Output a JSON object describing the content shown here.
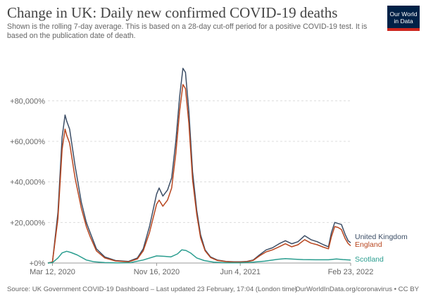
{
  "title": "Change in UK: Daily new confirmed COVID-19 deaths",
  "subtitle": "Shown is the rolling 7-day average. This is based on a 28-day cut-off period for a positive COVID-19 test. It is based on the publication date of death.",
  "logo": {
    "line1": "Our World",
    "line2": "in Data"
  },
  "footer": {
    "source": "Source: UK Government COVID-19 Dashboard – Last updated 23 February, 17:04 (London time)",
    "credit": "OurWorldInData.org/coronavirus • CC BY"
  },
  "chart_data": {
    "type": "line",
    "title": "Change in UK: Daily new confirmed COVID-19 deaths",
    "ylim": [
      0,
      95000
    ],
    "xlim": [
      "2020-03-01",
      "2022-02-23"
    ],
    "y_ticks": [
      {
        "value": 0,
        "label": "+0%"
      },
      {
        "value": 20000,
        "label": "+20,000%"
      },
      {
        "value": 40000,
        "label": "+40,000%"
      },
      {
        "value": 60000,
        "label": "+60,000%"
      },
      {
        "value": 80000,
        "label": "+80,000%"
      }
    ],
    "x_ticks": [
      {
        "date": "2020-03-12",
        "label": "Mar 12, 2020"
      },
      {
        "date": "2020-11-16",
        "label": "Nov 16, 2020"
      },
      {
        "date": "2021-06-04",
        "label": "Jun 4, 2021"
      },
      {
        "date": "2022-02-23",
        "label": "Feb 23, 2022"
      }
    ],
    "grid": "horizontal dashed",
    "legend": "right, at line ends",
    "series": [
      {
        "name": "United Kingdom",
        "color": "#3c4e66",
        "points": [
          [
            "2020-03-01",
            0
          ],
          [
            "2020-03-12",
            500
          ],
          [
            "2020-03-25",
            25000
          ],
          [
            "2020-04-04",
            62000
          ],
          [
            "2020-04-11",
            73000
          ],
          [
            "2020-04-15",
            70000
          ],
          [
            "2020-04-22",
            66000
          ],
          [
            "2020-05-05",
            48000
          ],
          [
            "2020-05-20",
            30000
          ],
          [
            "2020-06-01",
            20000
          ],
          [
            "2020-06-10",
            15000
          ],
          [
            "2020-06-25",
            7000
          ],
          [
            "2020-07-15",
            3000
          ],
          [
            "2020-08-10",
            1200
          ],
          [
            "2020-09-10",
            800
          ],
          [
            "2020-10-01",
            2500
          ],
          [
            "2020-10-15",
            7000
          ],
          [
            "2020-10-30",
            18000
          ],
          [
            "2020-11-16",
            34000
          ],
          [
            "2020-11-22",
            37000
          ],
          [
            "2020-12-01",
            33000
          ],
          [
            "2020-12-12",
            36000
          ],
          [
            "2020-12-22",
            42000
          ],
          [
            "2021-01-01",
            60000
          ],
          [
            "2021-01-10",
            82000
          ],
          [
            "2021-01-18",
            96000
          ],
          [
            "2021-01-24",
            94000
          ],
          [
            "2021-02-01",
            75000
          ],
          [
            "2021-02-10",
            45000
          ],
          [
            "2021-02-20",
            26000
          ],
          [
            "2021-03-01",
            14000
          ],
          [
            "2021-03-12",
            6500
          ],
          [
            "2021-03-25",
            3000
          ],
          [
            "2021-04-10",
            1500
          ],
          [
            "2021-05-01",
            800
          ],
          [
            "2021-05-20",
            600
          ],
          [
            "2021-06-04",
            600
          ],
          [
            "2021-06-20",
            800
          ],
          [
            "2021-07-05",
            1500
          ],
          [
            "2021-07-20",
            4000
          ],
          [
            "2021-08-05",
            6500
          ],
          [
            "2021-08-20",
            7500
          ],
          [
            "2021-09-05",
            9500
          ],
          [
            "2021-09-20",
            11000
          ],
          [
            "2021-10-05",
            9500
          ],
          [
            "2021-10-20",
            10500
          ],
          [
            "2021-11-05",
            13500
          ],
          [
            "2021-11-20",
            11500
          ],
          [
            "2021-12-05",
            10500
          ],
          [
            "2021-12-20",
            9000
          ],
          [
            "2022-01-01",
            8000
          ],
          [
            "2022-01-08",
            15000
          ],
          [
            "2022-01-16",
            20000
          ],
          [
            "2022-01-24",
            19500
          ],
          [
            "2022-02-01",
            19000
          ],
          [
            "2022-02-10",
            14000
          ],
          [
            "2022-02-17",
            11000
          ],
          [
            "2022-02-23",
            10000
          ]
        ]
      },
      {
        "name": "England",
        "color": "#b8461f",
        "points": [
          [
            "2020-03-01",
            0
          ],
          [
            "2020-03-12",
            500
          ],
          [
            "2020-03-25",
            22000
          ],
          [
            "2020-04-04",
            56000
          ],
          [
            "2020-04-11",
            66000
          ],
          [
            "2020-04-15",
            63000
          ],
          [
            "2020-04-22",
            59000
          ],
          [
            "2020-05-05",
            42000
          ],
          [
            "2020-05-20",
            27000
          ],
          [
            "2020-06-01",
            18000
          ],
          [
            "2020-06-10",
            13000
          ],
          [
            "2020-06-25",
            6000
          ],
          [
            "2020-07-15",
            2500
          ],
          [
            "2020-08-10",
            1000
          ],
          [
            "2020-09-10",
            600
          ],
          [
            "2020-10-01",
            2000
          ],
          [
            "2020-10-15",
            6000
          ],
          [
            "2020-10-30",
            15000
          ],
          [
            "2020-11-16",
            29000
          ],
          [
            "2020-11-22",
            31000
          ],
          [
            "2020-12-01",
            28000
          ],
          [
            "2020-12-12",
            31000
          ],
          [
            "2020-12-22",
            37000
          ],
          [
            "2021-01-01",
            54000
          ],
          [
            "2021-01-10",
            75000
          ],
          [
            "2021-01-18",
            88000
          ],
          [
            "2021-01-24",
            86000
          ],
          [
            "2021-02-01",
            69000
          ],
          [
            "2021-02-10",
            41000
          ],
          [
            "2021-02-20",
            24000
          ],
          [
            "2021-03-01",
            12500
          ],
          [
            "2021-03-12",
            6000
          ],
          [
            "2021-03-25",
            2700
          ],
          [
            "2021-04-10",
            1300
          ],
          [
            "2021-05-01",
            700
          ],
          [
            "2021-05-20",
            500
          ],
          [
            "2021-06-04",
            500
          ],
          [
            "2021-06-20",
            700
          ],
          [
            "2021-07-05",
            1300
          ],
          [
            "2021-07-20",
            3500
          ],
          [
            "2021-08-05",
            5500
          ],
          [
            "2021-08-20",
            6500
          ],
          [
            "2021-09-05",
            8000
          ],
          [
            "2021-09-20",
            9500
          ],
          [
            "2021-10-05",
            8000
          ],
          [
            "2021-10-20",
            9000
          ],
          [
            "2021-11-05",
            11500
          ],
          [
            "2021-11-20",
            9800
          ],
          [
            "2021-12-05",
            9000
          ],
          [
            "2021-12-20",
            7800
          ],
          [
            "2022-01-01",
            7000
          ],
          [
            "2022-01-08",
            13000
          ],
          [
            "2022-01-16",
            18000
          ],
          [
            "2022-01-24",
            17500
          ],
          [
            "2022-02-01",
            16500
          ],
          [
            "2022-02-10",
            12000
          ],
          [
            "2022-02-17",
            9600
          ],
          [
            "2022-02-23",
            8500
          ]
        ]
      },
      {
        "name": "Scotland",
        "color": "#2a9d8f",
        "points": [
          [
            "2020-03-01",
            0
          ],
          [
            "2020-03-12",
            200
          ],
          [
            "2020-03-25",
            2500
          ],
          [
            "2020-04-04",
            5000
          ],
          [
            "2020-04-15",
            5800
          ],
          [
            "2020-04-25",
            5200
          ],
          [
            "2020-05-10",
            4000
          ],
          [
            "2020-06-01",
            1500
          ],
          [
            "2020-06-20",
            600
          ],
          [
            "2020-07-15",
            200
          ],
          [
            "2020-08-15",
            100
          ],
          [
            "2020-09-15",
            200
          ],
          [
            "2020-10-15",
            1500
          ],
          [
            "2020-11-16",
            3500
          ],
          [
            "2020-12-05",
            3300
          ],
          [
            "2020-12-20",
            3000
          ],
          [
            "2021-01-05",
            4500
          ],
          [
            "2021-01-15",
            6500
          ],
          [
            "2021-01-25",
            6200
          ],
          [
            "2021-02-05",
            5000
          ],
          [
            "2021-02-20",
            2500
          ],
          [
            "2021-03-10",
            1200
          ],
          [
            "2021-04-01",
            400
          ],
          [
            "2021-05-01",
            150
          ],
          [
            "2021-06-04",
            150
          ],
          [
            "2021-07-05",
            400
          ],
          [
            "2021-08-01",
            900
          ],
          [
            "2021-09-01",
            1800
          ],
          [
            "2021-09-20",
            2200
          ],
          [
            "2021-10-10",
            1900
          ],
          [
            "2021-11-01",
            1700
          ],
          [
            "2021-12-01",
            1600
          ],
          [
            "2022-01-01",
            1600
          ],
          [
            "2022-01-20",
            2000
          ],
          [
            "2022-02-05",
            1700
          ],
          [
            "2022-02-23",
            1500
          ]
        ]
      }
    ]
  }
}
